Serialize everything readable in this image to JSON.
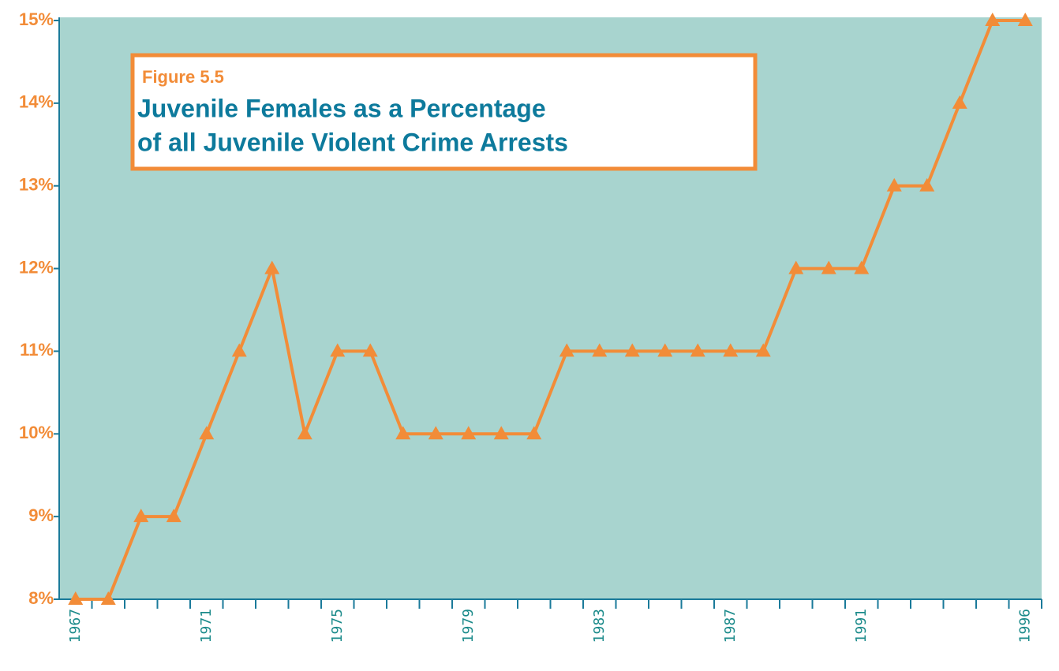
{
  "chart_data": {
    "type": "line",
    "figure_label": "Figure 5.5",
    "title": [
      "Juvenile Females as a Percentage",
      "of all Juvenile Violent Crime Arrests"
    ],
    "categories": [
      "1967",
      null,
      null,
      null,
      "1971",
      null,
      null,
      null,
      "1975",
      null,
      null,
      null,
      "1979",
      null,
      null,
      null,
      "1983",
      null,
      null,
      null,
      "1987",
      null,
      null,
      null,
      "1991",
      null,
      null,
      null,
      null,
      "1996"
    ],
    "series": [
      {
        "color": "#f28c38",
        "values": [
          8,
          8,
          9,
          9,
          10,
          11,
          12,
          10,
          11,
          11,
          10,
          10,
          10,
          10,
          10,
          11,
          11,
          11,
          11,
          11,
          11,
          11,
          12,
          12,
          12,
          13,
          13,
          14,
          15,
          15
        ]
      }
    ],
    "ylim": [
      8,
      15
    ],
    "yticks": [
      {
        "value": 8,
        "label": "8%"
      },
      {
        "value": 9,
        "label": "9%"
      },
      {
        "value": 10,
        "label": "10%"
      },
      {
        "value": 11,
        "label": "11%"
      },
      {
        "value": 12,
        "label": "12%"
      },
      {
        "value": 13,
        "label": "13%"
      },
      {
        "value": 14,
        "label": "14%"
      },
      {
        "value": 15,
        "label": "15%"
      }
    ],
    "background": "#a8d4cf",
    "axis_color": "#1a7a9a"
  }
}
